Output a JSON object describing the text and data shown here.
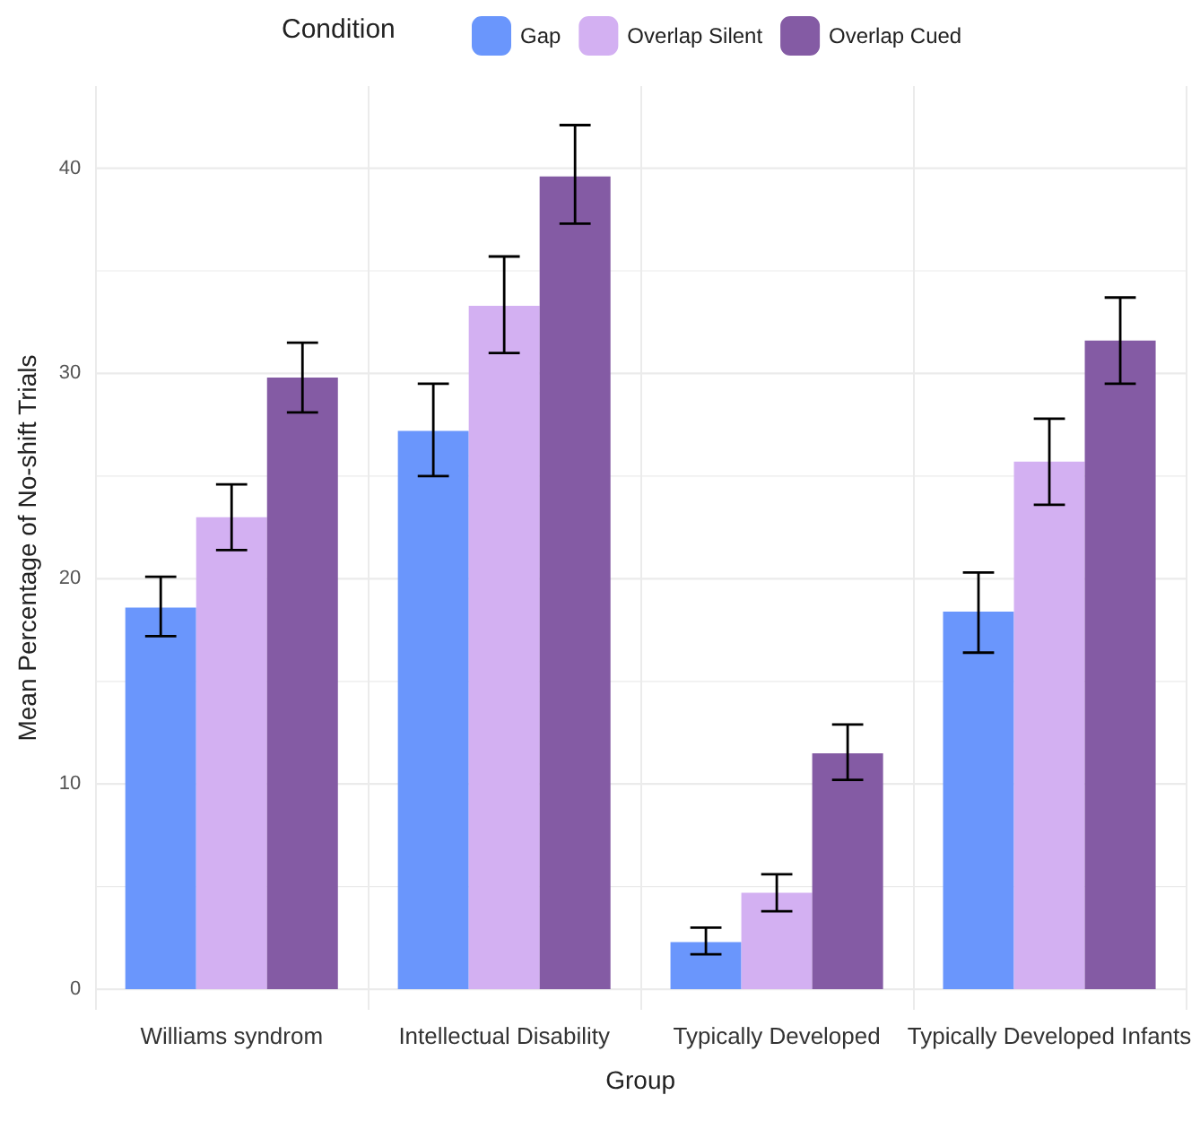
{
  "chart_data": {
    "type": "bar",
    "xlabel": "Group",
    "ylabel": "Mean Percentage of No-shift Trials",
    "legend_title": "Condition",
    "categories": [
      "Williams syndrom",
      "Intellectual Disability",
      "Typically Developed",
      "Typically Developed Infants"
    ],
    "series": [
      {
        "name": "Gap",
        "color": "#6a96fc",
        "values": [
          18.6,
          27.2,
          2.3,
          18.4
        ],
        "errors": [
          [
            17.2,
            20.1
          ],
          [
            25.0,
            29.5
          ],
          [
            1.7,
            3.0
          ],
          [
            16.4,
            20.3
          ]
        ]
      },
      {
        "name": "Overlap Silent",
        "color": "#d3b0f2",
        "values": [
          23.0,
          33.3,
          4.7,
          25.7
        ],
        "errors": [
          [
            21.4,
            24.6
          ],
          [
            31.0,
            35.7
          ],
          [
            3.8,
            5.6
          ],
          [
            23.6,
            27.8
          ]
        ]
      },
      {
        "name": "Overlap Cued",
        "color": "#845ba4",
        "values": [
          29.8,
          39.6,
          11.5,
          31.6
        ],
        "errors": [
          [
            28.1,
            31.5
          ],
          [
            37.3,
            42.1
          ],
          [
            10.2,
            12.9
          ],
          [
            29.5,
            33.7
          ]
        ]
      }
    ],
    "ylim": [
      -1,
      44
    ],
    "yticks": [
      0,
      10,
      20,
      30,
      40
    ],
    "grid": true,
    "legend": "top"
  }
}
